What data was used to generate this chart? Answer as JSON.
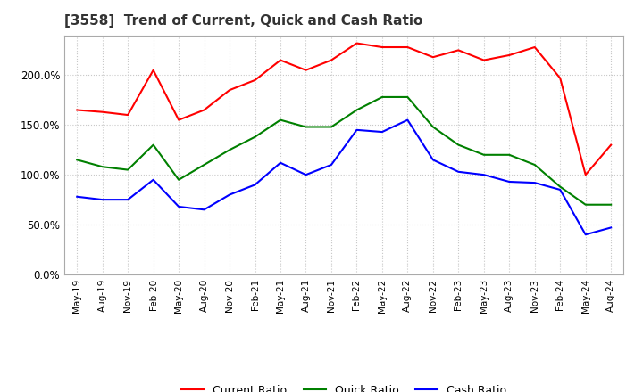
{
  "title": "[3558]  Trend of Current, Quick and Cash Ratio",
  "x_labels": [
    "May-19",
    "Aug-19",
    "Nov-19",
    "Feb-20",
    "May-20",
    "Aug-20",
    "Nov-20",
    "Feb-21",
    "May-21",
    "Aug-21",
    "Nov-21",
    "Feb-22",
    "May-22",
    "Aug-22",
    "Nov-22",
    "Feb-23",
    "May-23",
    "Aug-23",
    "Nov-23",
    "Feb-24",
    "May-24",
    "Aug-24"
  ],
  "current_ratio": [
    165,
    163,
    160,
    205,
    155,
    165,
    185,
    195,
    215,
    205,
    215,
    232,
    228,
    228,
    218,
    225,
    215,
    220,
    228,
    197,
    100,
    130
  ],
  "quick_ratio": [
    115,
    108,
    105,
    130,
    95,
    110,
    125,
    138,
    155,
    148,
    148,
    165,
    178,
    178,
    148,
    130,
    120,
    120,
    110,
    88,
    70,
    70
  ],
  "cash_ratio": [
    78,
    75,
    75,
    95,
    68,
    65,
    80,
    90,
    112,
    100,
    110,
    145,
    143,
    155,
    115,
    103,
    100,
    93,
    92,
    85,
    40,
    47
  ],
  "ylim": [
    0,
    240
  ],
  "yticks": [
    0,
    50,
    100,
    150,
    200
  ],
  "current_color": "#ff0000",
  "quick_color": "#008000",
  "cash_color": "#0000ff",
  "bg_color": "#ffffff",
  "grid_color": "#c8c8c8",
  "title_fontsize": 11
}
